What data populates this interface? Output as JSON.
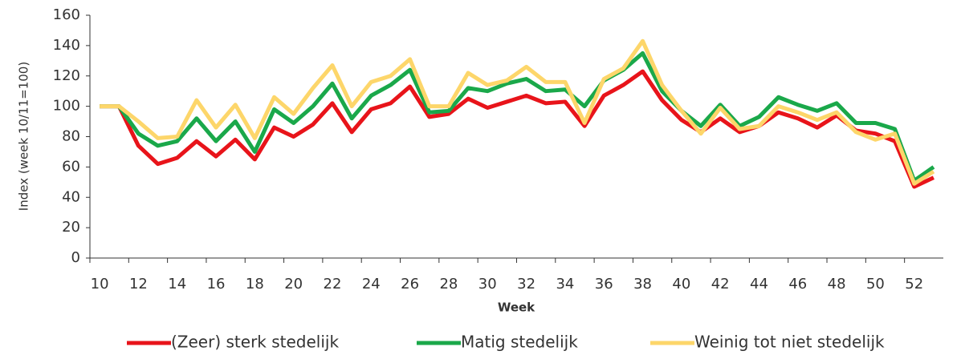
{
  "chart_data": {
    "type": "line",
    "y_label": "Index (week 10/11=100)",
    "x_label": "Week",
    "x": [
      10,
      11,
      12,
      13,
      14,
      15,
      16,
      17,
      18,
      19,
      20,
      21,
      22,
      23,
      24,
      25,
      26,
      27,
      28,
      29,
      30,
      31,
      32,
      33,
      34,
      35,
      36,
      37,
      38,
      39,
      40,
      41,
      42,
      43,
      44,
      45,
      46,
      47,
      48,
      49,
      50,
      51,
      52,
      53
    ],
    "xlim": [
      9.5,
      53.5
    ],
    "xticks": [
      10,
      12,
      14,
      16,
      18,
      20,
      22,
      24,
      26,
      28,
      30,
      32,
      34,
      36,
      38,
      40,
      42,
      44,
      46,
      48,
      50,
      52
    ],
    "ylim": [
      0,
      160
    ],
    "yticks": [
      0,
      20,
      40,
      60,
      80,
      100,
      120,
      140,
      160
    ],
    "legend": "bottom",
    "series": [
      {
        "name": "(Zeer) sterk stedelijk",
        "color": "#e8141a",
        "values": [
          100,
          100,
          74,
          62,
          66,
          77,
          67,
          78,
          65,
          86,
          80,
          88,
          102,
          83,
          98,
          102,
          113,
          93,
          95,
          105,
          99,
          103,
          107,
          102,
          103,
          87,
          107,
          114,
          123,
          104,
          91,
          83,
          92,
          83,
          87,
          96,
          92,
          86,
          94,
          84,
          82,
          77,
          47,
          53
        ]
      },
      {
        "name": "Matig stedelijk",
        "color": "#1aa84a",
        "values": [
          100,
          100,
          82,
          74,
          77,
          92,
          77,
          90,
          70,
          98,
          89,
          100,
          115,
          92,
          107,
          114,
          124,
          96,
          97,
          112,
          110,
          115,
          118,
          110,
          111,
          100,
          117,
          124,
          135,
          110,
          97,
          87,
          101,
          87,
          93,
          106,
          101,
          97,
          102,
          89,
          89,
          85,
          51,
          60
        ]
      },
      {
        "name": "Weinig tot niet stedelijk",
        "color": "#fdd66a",
        "values": [
          100,
          100,
          90,
          79,
          80,
          104,
          86,
          101,
          79,
          106,
          95,
          112,
          127,
          100,
          116,
          120,
          131,
          100,
          100,
          122,
          114,
          117,
          126,
          116,
          116,
          89,
          118,
          125,
          143,
          114,
          97,
          82,
          99,
          85,
          87,
          100,
          96,
          91,
          96,
          83,
          78,
          82,
          49,
          57
        ]
      }
    ]
  }
}
